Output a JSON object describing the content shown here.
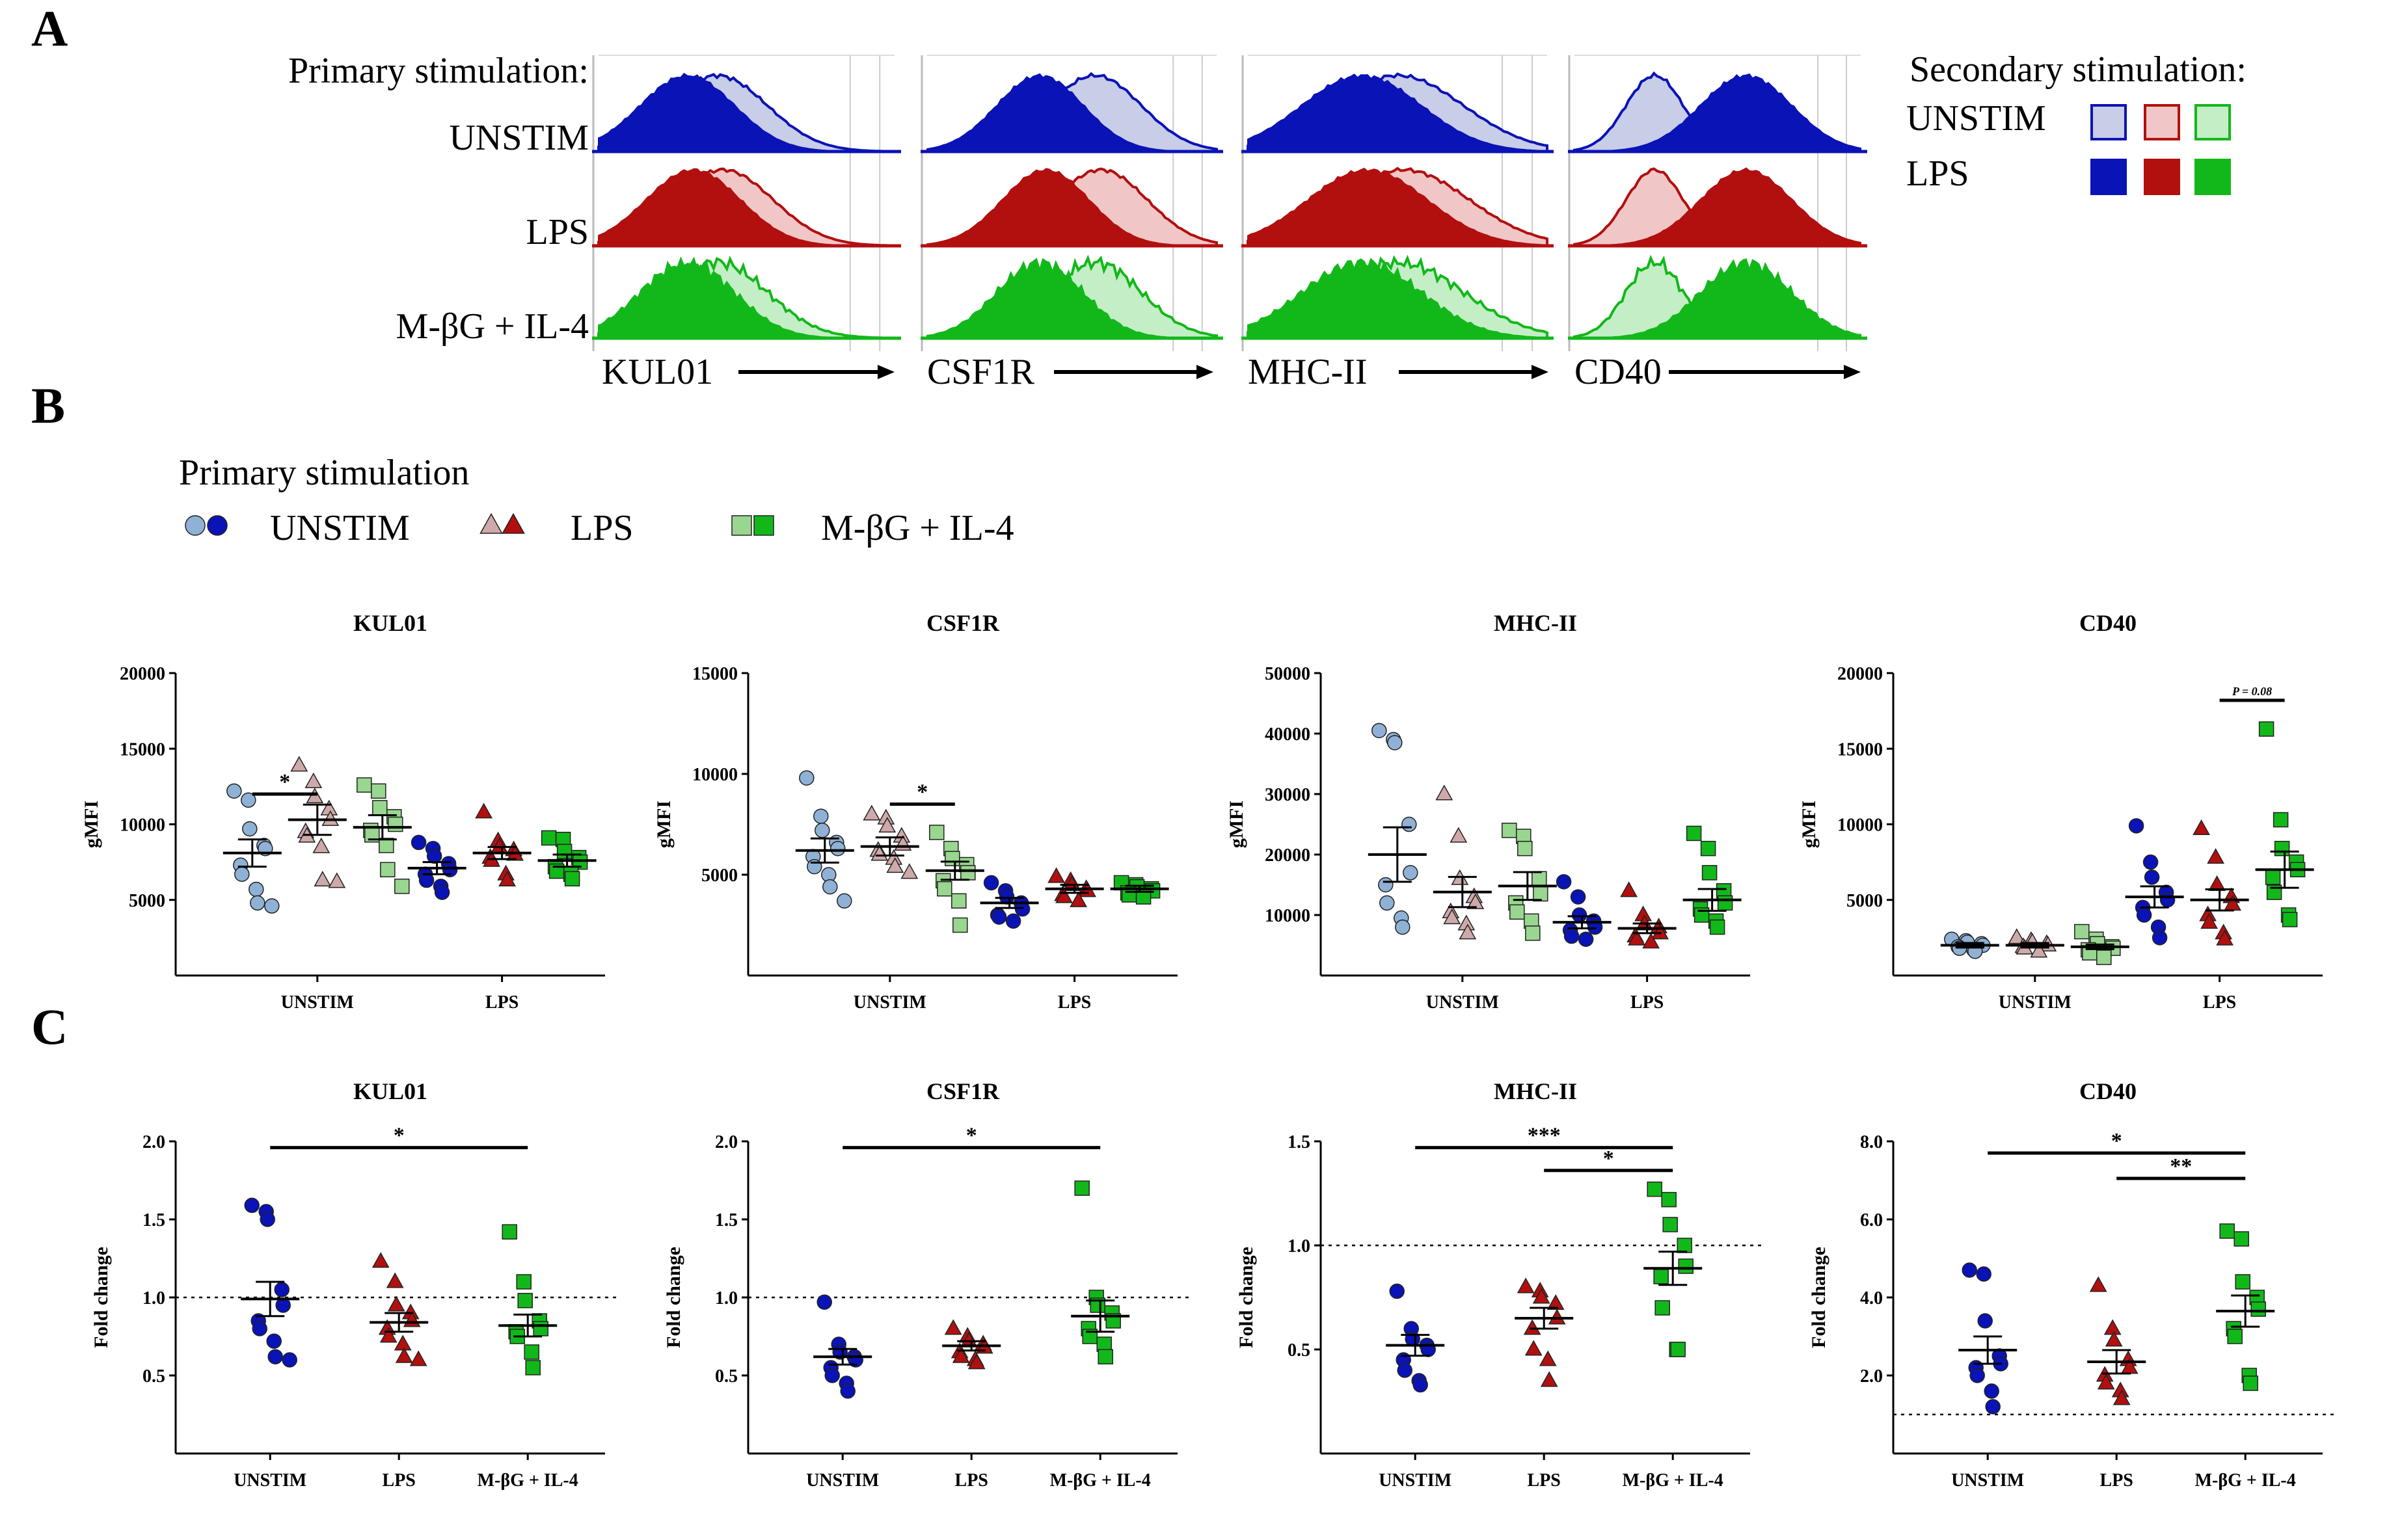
{
  "panels": {
    "a": "A",
    "b": "B",
    "c": "C"
  },
  "colors": {
    "unstim_solid": "#0a13b5",
    "unstim_light": "#c8cde8",
    "unstim_pale": "#8fb1d6",
    "lps_solid": "#b20f0f",
    "lps_light": "#f1c6c6",
    "lps_pale": "#cfa9a9",
    "mbg_solid": "#12b81a",
    "mbg_light": "#c4eec6",
    "mbg_pale": "#99d68f"
  },
  "flow": {
    "primary_label": "Primary stimulation:",
    "rows": [
      "UNSTIM",
      "LPS",
      "M-βG + IL-4"
    ],
    "markers": [
      "KUL01",
      "CSF1R",
      "MHC-II",
      "CD40"
    ],
    "legend": {
      "title": "Secondary stimulation:",
      "rows": [
        "UNSTIM",
        "LPS"
      ]
    }
  },
  "legend_b": {
    "title": "Primary stimulation",
    "items": [
      "UNSTIM",
      "LPS",
      "M-βG + IL-4"
    ]
  },
  "chart_data": [
    {
      "type": "scatter",
      "panel": "B",
      "title": "KUL01",
      "ylabel": "gMFI",
      "yticks": [
        "20000",
        "15000",
        "10000",
        "5000"
      ],
      "tick_values": [
        20000,
        15000,
        10000,
        5000
      ],
      "ylim": [
        0,
        20000
      ],
      "categories": [
        "UNSTIM",
        "LPS"
      ],
      "series": [
        {
          "name": "UNSTIM / UNSTIM",
          "group": 0,
          "mean": 8100,
          "sem": 900,
          "values": [
            12200,
            11600,
            9700,
            8600,
            8400,
            7300,
            6700,
            5700,
            4800,
            4600
          ]
        },
        {
          "name": "LPS / UNSTIM",
          "group": 0,
          "mean": 10300,
          "sem": 1000,
          "values": [
            13900,
            12800,
            11800,
            11000,
            10300,
            9500,
            9200,
            8500,
            6300,
            6200
          ]
        },
        {
          "name": "M-βG + IL-4 / UNSTIM",
          "group": 0,
          "mean": 9800,
          "sem": 800,
          "values": [
            12600,
            12200,
            11100,
            10500,
            10000,
            9600,
            9300,
            8600,
            7000,
            5900
          ]
        },
        {
          "name": "UNSTIM / LPS",
          "group": 1,
          "mean": 7100,
          "sem": 400,
          "values": [
            8800,
            8400,
            7900,
            7400,
            7000,
            6700,
            6300,
            5900,
            5500
          ]
        },
        {
          "name": "LPS / LPS",
          "group": 1,
          "mean": 8100,
          "sem": 400,
          "values": [
            10800,
            8900,
            8500,
            8300,
            8000,
            7800,
            7600,
            6700,
            6300
          ]
        },
        {
          "name": "M-βG + IL-4 / LPS",
          "group": 1,
          "mean": 7600,
          "sem": 400,
          "values": [
            9100,
            9000,
            8200,
            7800,
            7500,
            7200,
            6900,
            6700,
            6400
          ]
        }
      ],
      "sig": [
        {
          "label": "*",
          "from": 0,
          "to": 1,
          "y": 12000
        }
      ]
    },
    {
      "type": "scatter",
      "panel": "B",
      "title": "CSF1R",
      "ylabel": "gMFI",
      "yticks": [
        "15000",
        "10000",
        "5000"
      ],
      "tick_values": [
        15000,
        10000,
        5000
      ],
      "ylim": [
        0,
        15000
      ],
      "categories": [
        "UNSTIM",
        "LPS"
      ],
      "series": [
        {
          "name": "UNSTIM / UNSTIM",
          "group": 0,
          "mean": 6200,
          "sem": 600,
          "values": [
            9800,
            7900,
            7200,
            6600,
            6300,
            5900,
            5400,
            5000,
            4400,
            3700
          ]
        },
        {
          "name": "LPS / UNSTIM",
          "group": 0,
          "mean": 6400,
          "sem": 450,
          "values": [
            8000,
            7800,
            7400,
            6900,
            6500,
            6200,
            6000,
            5800,
            5400,
            5100
          ]
        },
        {
          "name": "M-βG + IL-4 / UNSTIM",
          "group": 0,
          "mean": 5200,
          "sem": 450,
          "values": [
            7100,
            6300,
            5800,
            5500,
            5100,
            4700,
            4300,
            3700,
            2500
          ]
        },
        {
          "name": "UNSTIM / LPS",
          "group": 1,
          "mean": 3600,
          "sem": 250,
          "values": [
            4600,
            4200,
            3900,
            3600,
            3300,
            3000,
            2900,
            2700
          ]
        },
        {
          "name": "LPS / LPS",
          "group": 1,
          "mean": 4300,
          "sem": 200,
          "values": [
            4900,
            4700,
            4500,
            4300,
            4200,
            4000,
            3900,
            3700
          ]
        },
        {
          "name": "M-βG + IL-4 / LPS",
          "group": 1,
          "mean": 4300,
          "sem": 150,
          "values": [
            4600,
            4500,
            4400,
            4300,
            4200,
            4100,
            4000,
            3900
          ]
        }
      ],
      "sig": [
        {
          "label": "*",
          "from": 1,
          "to": 2,
          "y": 8500
        }
      ]
    },
    {
      "type": "scatter",
      "panel": "B",
      "title": "MHC-II",
      "ylabel": "gMFI",
      "yticks": [
        "50000",
        "40000",
        "30000",
        "20000",
        "10000"
      ],
      "tick_values": [
        50000,
        40000,
        30000,
        20000,
        10000
      ],
      "ylim": [
        0,
        50000
      ],
      "categories": [
        "UNSTIM",
        "LPS"
      ],
      "series": [
        {
          "name": "UNSTIM / UNSTIM",
          "group": 0,
          "mean": 20000,
          "sem": 4500,
          "values": [
            40500,
            39000,
            38500,
            25000,
            17000,
            15000,
            12000,
            9500,
            8000
          ]
        },
        {
          "name": "LPS / UNSTIM",
          "group": 0,
          "mean": 13800,
          "sem": 2500,
          "values": [
            30000,
            23000,
            16000,
            13000,
            12000,
            10500,
            9500,
            8500,
            7000
          ]
        },
        {
          "name": "M-βG + IL-4 / UNSTIM",
          "group": 0,
          "mean": 14800,
          "sem": 2300,
          "values": [
            24000,
            23000,
            21000,
            16000,
            13500,
            12000,
            10500,
            9000,
            7000
          ]
        },
        {
          "name": "UNSTIM / LPS",
          "group": 1,
          "mean": 8800,
          "sem": 1000,
          "values": [
            15500,
            13000,
            10000,
            9000,
            8000,
            7500,
            6500,
            6000
          ]
        },
        {
          "name": "LPS / LPS",
          "group": 1,
          "mean": 7800,
          "sem": 800,
          "values": [
            14000,
            10000,
            8500,
            8000,
            7000,
            6500,
            6000,
            5500
          ]
        },
        {
          "name": "M-βG + IL-4 / LPS",
          "group": 1,
          "mean": 12500,
          "sem": 1800,
          "values": [
            23500,
            21000,
            17000,
            14000,
            12000,
            11000,
            10000,
            9000,
            8000
          ]
        }
      ],
      "sig": []
    },
    {
      "type": "scatter",
      "panel": "B",
      "title": "CD40",
      "ylabel": "gMFI",
      "yticks": [
        "20000",
        "15000",
        "10000",
        "5000"
      ],
      "tick_values": [
        20000,
        15000,
        10000,
        5000
      ],
      "ylim": [
        0,
        20000
      ],
      "categories": [
        "UNSTIM",
        "LPS"
      ],
      "series": [
        {
          "name": "UNSTIM / UNSTIM",
          "group": 0,
          "mean": 2000,
          "sem": 150,
          "values": [
            2400,
            2300,
            2200,
            2100,
            2000,
            1900,
            1800,
            1700,
            1600
          ]
        },
        {
          "name": "LPS / UNSTIM",
          "group": 0,
          "mean": 2000,
          "sem": 150,
          "values": [
            2500,
            2300,
            2200,
            2100,
            2000,
            1900,
            1800,
            1600
          ]
        },
        {
          "name": "M-βG + IL-4 / UNSTIM",
          "group": 0,
          "mean": 1900,
          "sem": 150,
          "values": [
            2900,
            2400,
            2100,
            1900,
            1800,
            1700,
            1500,
            1200
          ]
        },
        {
          "name": "UNSTIM / LPS",
          "group": 1,
          "mean": 5200,
          "sem": 700,
          "values": [
            9900,
            7500,
            6500,
            5500,
            5000,
            4500,
            4000,
            3200,
            2500
          ]
        },
        {
          "name": "LPS / LPS",
          "group": 1,
          "mean": 5000,
          "sem": 700,
          "values": [
            9700,
            7800,
            6000,
            5200,
            4700,
            4000,
            3500,
            2800,
            2400
          ]
        },
        {
          "name": "M-βG + IL-4 / LPS",
          "group": 1,
          "mean": 7000,
          "sem": 1200,
          "values": [
            16300,
            10300,
            8400,
            7500,
            7000,
            6500,
            5500,
            4000,
            3700
          ]
        }
      ],
      "sig": [
        {
          "label": "P = 0.08",
          "from": 4,
          "to": 5,
          "y": 18200
        }
      ]
    },
    {
      "type": "scatter",
      "panel": "C",
      "title": "KUL01",
      "ylabel": "Fold change",
      "yticks": [
        "2.0",
        "1.5",
        "1.0",
        "0.5"
      ],
      "tick_values": [
        2.0,
        1.5,
        1.0,
        0.5
      ],
      "ylim": [
        0,
        2.0
      ],
      "refline": 1.0,
      "categories": [
        "UNSTIM",
        "LPS",
        "M-βG + IL-4"
      ],
      "series": [
        {
          "name": "UNSTIM",
          "mean": 0.99,
          "sem": 0.11,
          "values": [
            1.59,
            1.55,
            1.5,
            1.05,
            0.95,
            0.85,
            0.8,
            0.72,
            0.62,
            0.6
          ]
        },
        {
          "name": "LPS",
          "mean": 0.84,
          "sem": 0.06,
          "values": [
            1.23,
            1.1,
            0.95,
            0.9,
            0.85,
            0.8,
            0.75,
            0.7,
            0.62,
            0.6
          ]
        },
        {
          "name": "M-βG + IL-4",
          "mean": 0.82,
          "sem": 0.07,
          "values": [
            1.42,
            1.1,
            0.98,
            0.85,
            0.8,
            0.78,
            0.75,
            0.65,
            0.55
          ]
        }
      ],
      "sig": [
        {
          "label": "*",
          "from": 0,
          "to": 2,
          "y": 1.96
        }
      ]
    },
    {
      "type": "scatter",
      "panel": "C",
      "title": "CSF1R",
      "ylabel": "Fold change",
      "yticks": [
        "2.0",
        "1.5",
        "1.0",
        "0.5"
      ],
      "tick_values": [
        2.0,
        1.5,
        1.0,
        0.5
      ],
      "ylim": [
        0,
        2.0
      ],
      "refline": 1.0,
      "categories": [
        "UNSTIM",
        "LPS",
        "M-βG + IL-4"
      ],
      "series": [
        {
          "name": "UNSTIM",
          "mean": 0.62,
          "sem": 0.05,
          "values": [
            0.97,
            0.7,
            0.65,
            0.62,
            0.6,
            0.55,
            0.5,
            0.45,
            0.4
          ]
        },
        {
          "name": "LPS",
          "mean": 0.69,
          "sem": 0.03,
          "values": [
            0.8,
            0.75,
            0.72,
            0.7,
            0.68,
            0.65,
            0.62,
            0.6,
            0.58
          ]
        },
        {
          "name": "M-βG + IL-4",
          "mean": 0.88,
          "sem": 0.1,
          "values": [
            1.7,
            1.0,
            0.95,
            0.9,
            0.85,
            0.8,
            0.75,
            0.7,
            0.62
          ]
        }
      ],
      "sig": [
        {
          "label": "*",
          "from": 0,
          "to": 2,
          "y": 1.96
        }
      ]
    },
    {
      "type": "scatter",
      "panel": "C",
      "title": "MHC-II",
      "ylabel": "Fold change",
      "yticks": [
        "1.5",
        "1.0",
        "0.5"
      ],
      "tick_values": [
        1.5,
        1.0,
        0.5
      ],
      "ylim": [
        0,
        1.5
      ],
      "refline": 1.0,
      "categories": [
        "UNSTIM",
        "LPS",
        "M-βG + IL-4"
      ],
      "series": [
        {
          "name": "UNSTIM",
          "mean": 0.52,
          "sem": 0.05,
          "values": [
            0.78,
            0.6,
            0.55,
            0.52,
            0.5,
            0.45,
            0.4,
            0.35,
            0.33
          ]
        },
        {
          "name": "LPS",
          "mean": 0.65,
          "sem": 0.05,
          "values": [
            0.8,
            0.78,
            0.75,
            0.72,
            0.65,
            0.6,
            0.5,
            0.45,
            0.35
          ]
        },
        {
          "name": "M-βG + IL-4",
          "mean": 0.89,
          "sem": 0.08,
          "values": [
            1.27,
            1.22,
            1.1,
            1.0,
            0.9,
            0.85,
            0.7,
            0.5,
            0.5
          ]
        }
      ],
      "sig": [
        {
          "label": "***",
          "from": 0,
          "to": 2,
          "y": 1.47
        },
        {
          "label": "*",
          "from": 1,
          "to": 2,
          "y": 1.36
        }
      ]
    },
    {
      "type": "scatter",
      "panel": "C",
      "title": "CD40",
      "ylabel": "Fold change",
      "yticks": [
        "8.0",
        "6.0",
        "4.0",
        "2.0"
      ],
      "tick_values": [
        8.0,
        6.0,
        4.0,
        2.0
      ],
      "ylim": [
        0,
        8.0
      ],
      "refline": 1.0,
      "categories": [
        "UNSTIM",
        "LPS",
        "M-βG + IL-4"
      ],
      "series": [
        {
          "name": "UNSTIM",
          "mean": 2.65,
          "sem": 0.35,
          "values": [
            4.7,
            4.6,
            3.4,
            2.5,
            2.3,
            2.2,
            2.0,
            1.6,
            1.2
          ]
        },
        {
          "name": "LPS",
          "mean": 2.35,
          "sem": 0.3,
          "values": [
            4.3,
            3.2,
            2.9,
            2.4,
            2.2,
            2.0,
            1.8,
            1.6,
            1.4
          ]
        },
        {
          "name": "M-βG + IL-4",
          "mean": 3.65,
          "sem": 0.4,
          "values": [
            5.7,
            5.5,
            4.4,
            4.0,
            3.7,
            3.2,
            3.0,
            2.0,
            1.8
          ]
        }
      ],
      "sig": [
        {
          "label": "*",
          "from": 0,
          "to": 2,
          "y": 7.7
        },
        {
          "label": "**",
          "from": 1,
          "to": 2,
          "y": 7.05
        }
      ]
    }
  ]
}
